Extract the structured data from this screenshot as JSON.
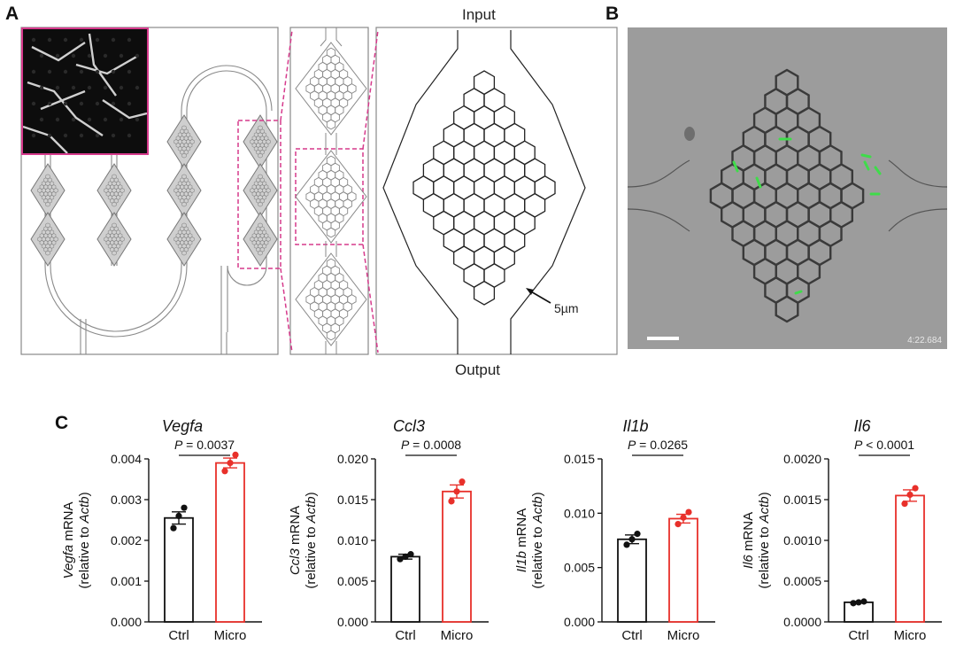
{
  "figure": {
    "panel_labels": {
      "a": "A",
      "b": "B",
      "c": "C"
    },
    "panel_a": {
      "input_label": "Input",
      "output_label": "Output",
      "scale_label": "5µm"
    },
    "panel_b": {
      "timestamp": "4:22.684"
    }
  },
  "colors": {
    "ctrl": "#111111",
    "micro": "#e8302a",
    "magenta": "#d63a8c",
    "cell_fluorescence": "#3fdc4a"
  },
  "chart_data": [
    {
      "type": "bar",
      "title": "Vegfa",
      "gene": "Vegfa",
      "ylabel_gene": "Vegfa",
      "ylabel_rest": " mRNA",
      "ylabel_line2_pre": "(relative to ",
      "ylabel_line2_gene": "Actb",
      "ylabel_line2_post": ")",
      "categories": [
        "Ctrl",
        "Micro"
      ],
      "values": [
        0.00255,
        0.0039
      ],
      "sem": [
        0.00015,
        0.00012
      ],
      "points": [
        [
          0.0023,
          0.0026,
          0.0028
        ],
        [
          0.0037,
          0.0039,
          0.0041
        ]
      ],
      "ylim": [
        0,
        0.004
      ],
      "yticks": [
        "0.000",
        "0.001",
        "0.002",
        "0.003",
        "0.004"
      ],
      "stat": {
        "label": "P",
        "op": "=",
        "value": "0.0037"
      }
    },
    {
      "type": "bar",
      "title": "Ccl3",
      "gene": "Ccl3",
      "ylabel_gene": "Ccl3",
      "ylabel_rest": " mRNA",
      "ylabel_line2_pre": "(relative to ",
      "ylabel_line2_gene": "Actb",
      "ylabel_line2_post": ")",
      "categories": [
        "Ctrl",
        "Micro"
      ],
      "values": [
        0.008,
        0.016
      ],
      "sem": [
        0.0003,
        0.0008
      ],
      "points": [
        [
          0.0077,
          0.008,
          0.0083
        ],
        [
          0.0148,
          0.016,
          0.0172
        ]
      ],
      "ylim": [
        0,
        0.02
      ],
      "yticks": [
        "0.000",
        "0.005",
        "0.010",
        "0.015",
        "0.020"
      ],
      "stat": {
        "label": "P",
        "op": "=",
        "value": "0.0008"
      }
    },
    {
      "type": "bar",
      "title": "Il1b",
      "gene": "Il1b",
      "ylabel_gene": "Il1b",
      "ylabel_rest": " mRNA",
      "ylabel_line2_pre": "(relative to ",
      "ylabel_line2_gene": "Actb",
      "ylabel_line2_post": ")",
      "categories": [
        "Ctrl",
        "Micro"
      ],
      "values": [
        0.0076,
        0.0095
      ],
      "sem": [
        0.0004,
        0.0004
      ],
      "points": [
        [
          0.0071,
          0.0076,
          0.0081
        ],
        [
          0.009,
          0.0096,
          0.0101
        ]
      ],
      "ylim": [
        0,
        0.015
      ],
      "yticks": [
        "0.000",
        "0.005",
        "0.010",
        "0.015"
      ],
      "stat": {
        "label": "P",
        "op": "=",
        "value": "0.0265"
      }
    },
    {
      "type": "bar",
      "title": "Il6",
      "gene": "Il6",
      "ylabel_gene": "Il6",
      "ylabel_rest": " mRNA",
      "ylabel_line2_pre": "(relative to ",
      "ylabel_line2_gene": "Actb",
      "ylabel_line2_post": ")",
      "categories": [
        "Ctrl",
        "Micro"
      ],
      "values": [
        0.00024,
        0.00155
      ],
      "sem": [
        1e-05,
        7e-05
      ],
      "points": [
        [
          0.00023,
          0.00024,
          0.00025
        ],
        [
          0.00145,
          0.00156,
          0.00164
        ]
      ],
      "ylim": [
        0,
        0.002
      ],
      "yticks": [
        "0.0000",
        "0.0005",
        "0.0010",
        "0.0015",
        "0.0020"
      ],
      "stat": {
        "label": "P",
        "op": "<",
        "value": "0.0001"
      }
    }
  ]
}
